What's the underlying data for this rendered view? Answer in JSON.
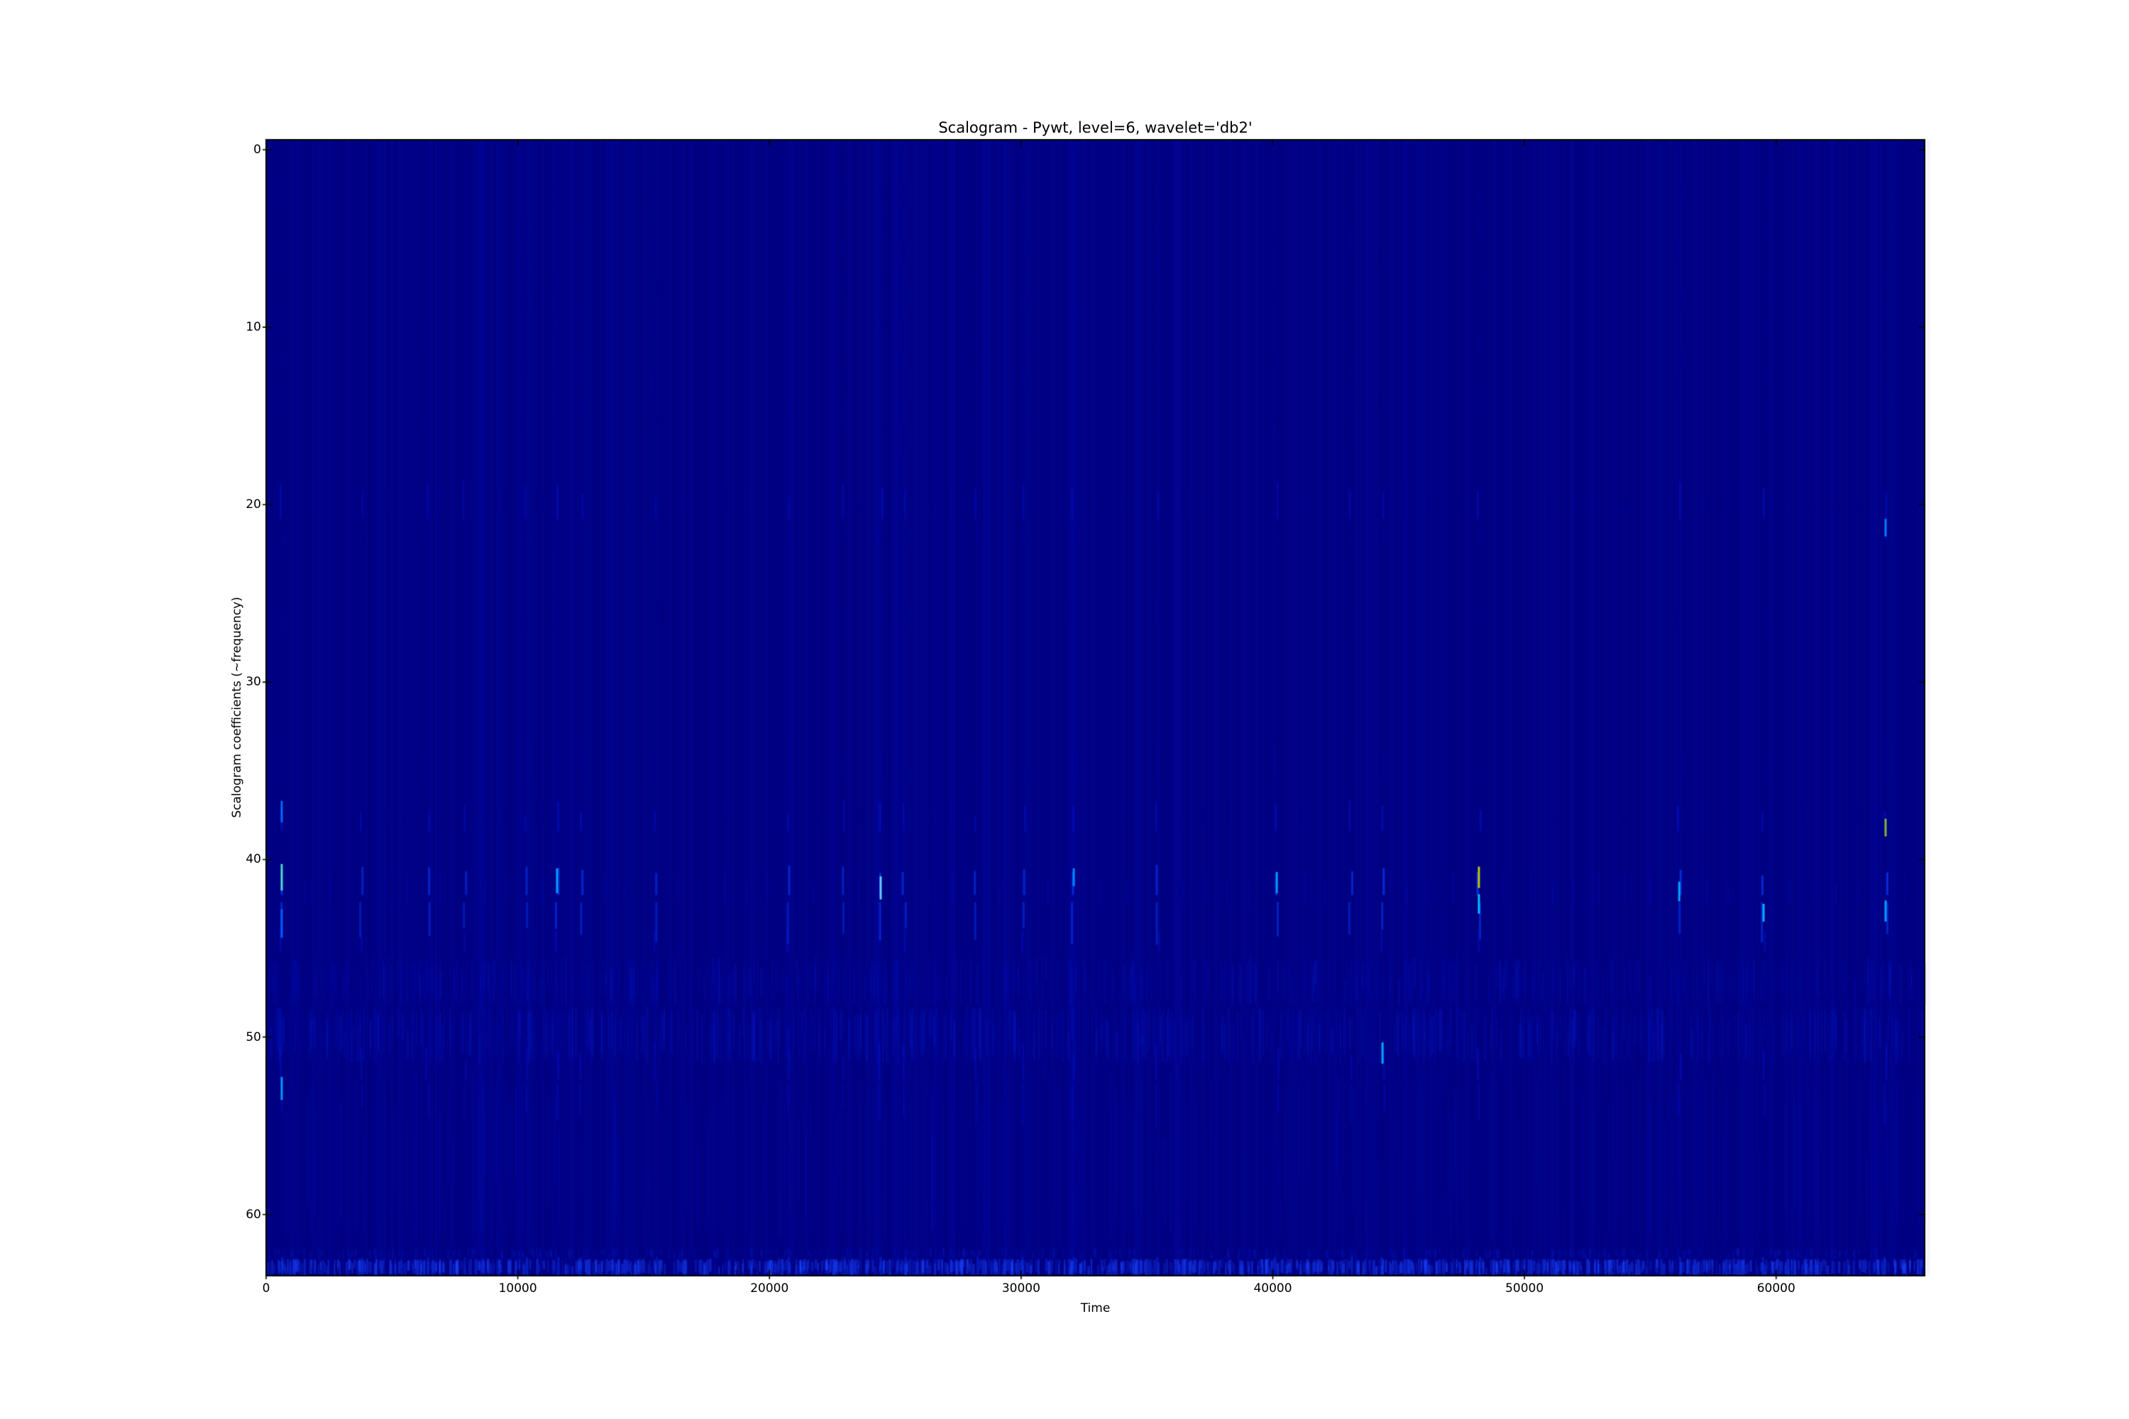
{
  "figure": {
    "background": "#ffffff"
  },
  "chart_data": {
    "type": "heatmap",
    "title": "Scalogram - Pywt, level=6, wavelet='db2'",
    "xlabel": "Time",
    "ylabel": "Scalogram coefficients (~frequency)",
    "colormap": "jet",
    "rows": 64,
    "x_range": [
      0,
      65900
    ],
    "y_range": [
      -0.56,
      63.45
    ],
    "x_ticks": [
      0,
      10000,
      20000,
      30000,
      40000,
      50000,
      60000
    ],
    "x_tick_labels": [
      "0",
      "10000",
      "20000",
      "30000",
      "40000",
      "50000",
      "60000"
    ],
    "y_ticks": [
      0,
      10,
      20,
      30,
      40,
      50,
      60
    ],
    "y_tick_labels": [
      "0",
      "10",
      "20",
      "30",
      "40",
      "50",
      "60"
    ],
    "legend": "none",
    "grid": false,
    "noise_seed": 1337,
    "noise_columns": 520,
    "palette": {
      "background": "#000082",
      "column_tint": "#1a2ae0",
      "streak_faint": "#0000c8",
      "streak_medium": "#0018e8",
      "streak_bright": "#0040ff",
      "streak_brighter": "#0090ff",
      "frame": "#000000",
      "text": "#000000"
    },
    "stripe_bands": [
      {
        "row0": 45.5,
        "row1": 48.3,
        "count": 650,
        "alpha_min": 0.03,
        "alpha_max": 0.1,
        "color": "#1030ff"
      },
      {
        "row0": 48.3,
        "row1": 51.5,
        "count": 780,
        "alpha_min": 0.04,
        "alpha_max": 0.13,
        "color": "#1030ff"
      },
      {
        "row0": 52.0,
        "row1": 61.5,
        "count": 330,
        "alpha_min": 0.02,
        "alpha_max": 0.07,
        "color": "#1030ff"
      },
      {
        "row0": 61.9,
        "row1": 62.5,
        "count": 430,
        "alpha_min": 0.05,
        "alpha_max": 0.14,
        "color": "#1535ff"
      },
      {
        "row0": 62.5,
        "row1": 63.45,
        "count": 1350,
        "alpha_min": 0.1,
        "alpha_max": 0.42,
        "color": "#1b46ff"
      }
    ],
    "events_major": [
      [
        620,
        1.0
      ],
      [
        3800,
        0.75
      ],
      [
        6430,
        0.8
      ],
      [
        7900,
        0.7
      ],
      [
        10320,
        0.75
      ],
      [
        11560,
        0.95
      ],
      [
        12520,
        0.85
      ],
      [
        15480,
        0.7
      ],
      [
        20730,
        0.8
      ],
      [
        22930,
        0.7
      ],
      [
        24420,
        1.0
      ],
      [
        25350,
        0.8
      ],
      [
        28200,
        0.75
      ],
      [
        30090,
        0.8
      ],
      [
        32090,
        0.85
      ],
      [
        35420,
        0.8
      ],
      [
        40160,
        0.9
      ],
      [
        43090,
        0.8
      ],
      [
        44360,
        0.95
      ],
      [
        48190,
        1.0
      ],
      [
        56150,
        0.95
      ],
      [
        59500,
        0.9
      ],
      [
        64350,
        1.0
      ]
    ],
    "events_minor": [
      [
        1500,
        0.35
      ],
      [
        2600,
        0.45
      ],
      [
        4700,
        0.3
      ],
      [
        5600,
        0.4
      ],
      [
        6900,
        0.35
      ],
      [
        8700,
        0.45
      ],
      [
        9500,
        0.3
      ],
      [
        11000,
        0.4
      ],
      [
        13500,
        0.45
      ],
      [
        14300,
        0.35
      ],
      [
        16400,
        0.4
      ],
      [
        17300,
        0.3
      ],
      [
        18200,
        0.45
      ],
      [
        19100,
        0.35
      ],
      [
        20000,
        0.3
      ],
      [
        21800,
        0.4
      ],
      [
        23600,
        0.45
      ],
      [
        26300,
        0.35
      ],
      [
        27200,
        0.4
      ],
      [
        29100,
        0.35
      ],
      [
        31000,
        0.45
      ],
      [
        33100,
        0.35
      ],
      [
        34200,
        0.4
      ],
      [
        36400,
        0.45
      ],
      [
        37300,
        0.3
      ],
      [
        38200,
        0.4
      ],
      [
        39100,
        0.35
      ],
      [
        41200,
        0.45
      ],
      [
        42100,
        0.35
      ],
      [
        45300,
        0.4
      ],
      [
        46200,
        0.35
      ],
      [
        47200,
        0.45
      ],
      [
        49100,
        0.4
      ],
      [
        50200,
        0.45
      ],
      [
        51100,
        0.35
      ],
      [
        52000,
        0.4
      ],
      [
        52900,
        0.45
      ],
      [
        54000,
        0.35
      ],
      [
        55000,
        0.4
      ],
      [
        57200,
        0.45
      ],
      [
        58100,
        0.35
      ],
      [
        60500,
        0.4
      ],
      [
        61400,
        0.35
      ],
      [
        62300,
        0.45
      ],
      [
        63200,
        0.35
      ],
      [
        65100,
        0.4
      ]
    ],
    "special_spots": [
      {
        "t": 620,
        "row": 41.0,
        "h": 1.5,
        "color": "#52e0c8"
      },
      {
        "t": 620,
        "row": 37.3,
        "h": 1.2,
        "color": "#0070ff"
      },
      {
        "t": 620,
        "row": 43.6,
        "h": 1.6,
        "color": "#0060ff"
      },
      {
        "t": 620,
        "row": 52.9,
        "h": 1.3,
        "color": "#00a0ff"
      },
      {
        "t": 11560,
        "row": 41.2,
        "h": 1.4,
        "color": "#00a8ff"
      },
      {
        "t": 24420,
        "row": 41.6,
        "h": 1.3,
        "color": "#6fd4ff"
      },
      {
        "t": 32090,
        "row": 41.0,
        "h": 1.0,
        "color": "#0090ff"
      },
      {
        "t": 40160,
        "row": 41.3,
        "h": 1.2,
        "color": "#00a0ff"
      },
      {
        "t": 44360,
        "row": 50.9,
        "h": 1.2,
        "color": "#00b4ff"
      },
      {
        "t": 48190,
        "row": 41.0,
        "h": 1.2,
        "color": "#c6d300"
      },
      {
        "t": 48190,
        "row": 42.5,
        "h": 1.1,
        "color": "#00c8ff"
      },
      {
        "t": 56150,
        "row": 41.8,
        "h": 1.1,
        "color": "#00b0ff"
      },
      {
        "t": 59500,
        "row": 43.0,
        "h": 1.0,
        "color": "#00c0ff"
      },
      {
        "t": 64350,
        "row": 38.2,
        "h": 1.0,
        "color": "#8cbf2e"
      },
      {
        "t": 64350,
        "row": 42.9,
        "h": 1.2,
        "color": "#00a8ff"
      },
      {
        "t": 64350,
        "row": 21.3,
        "h": 1.0,
        "color": "#0088ff"
      }
    ]
  }
}
